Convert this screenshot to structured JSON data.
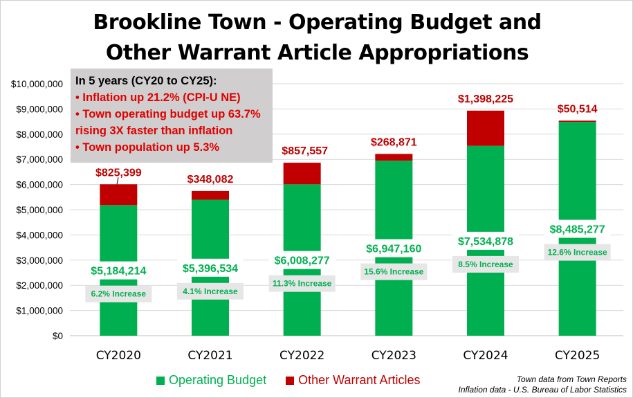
{
  "title_line1": "Brookline Town - Operating Budget and",
  "title_line2": "Other Warrant Article Appropriations",
  "note": {
    "heading": "In 5 years (CY20 to CY25):",
    "lines": [
      "• Inflation up 21.2% (CPI-U NE)",
      "• Town operating budget up 63.7%",
      "rising 3X faster than inflation",
      "• Town population up 5.3%"
    ]
  },
  "sources": [
    "Town data from Town Reports",
    "Inflation data - U.S. Bureau of Labor Statistics"
  ],
  "chart_data": {
    "type": "bar",
    "stacked": true,
    "categories": [
      "CY2020",
      "CY2021",
      "CY2022",
      "CY2023",
      "CY2024",
      "CY2025"
    ],
    "series": [
      {
        "name": "Operating Budget",
        "color": "#00b050",
        "values": [
          5184214,
          5396534,
          6008277,
          6947160,
          7534878,
          8485277
        ],
        "labels": [
          "$5,184,214",
          "$5,396,534",
          "$6,008,277",
          "$6,947,160",
          "$7,534,878",
          "$8,485,277"
        ]
      },
      {
        "name": "Other Warrant Articles",
        "color": "#c00000",
        "values": [
          825399,
          348082,
          857557,
          268871,
          1398225,
          50514
        ],
        "labels": [
          "$825,399",
          "$348,082",
          "$857,557",
          "$268,871",
          "$1,398,225",
          "$50,514"
        ]
      }
    ],
    "increase_labels": [
      "6.2% Increase",
      "4.1% Increase",
      "11.3% Increase",
      "15.6% Increase",
      "8.5% Increase",
      "12.6% Increase"
    ],
    "ylim": [
      0,
      10000000
    ],
    "yticks": [
      "$0",
      "$1,000,000",
      "$2,000,000",
      "$3,000,000",
      "$4,000,000",
      "$5,000,000",
      "$6,000,000",
      "$7,000,000",
      "$8,000,000",
      "$9,000,000",
      "$10,000,000"
    ],
    "grid": true,
    "legend": "bottom"
  }
}
